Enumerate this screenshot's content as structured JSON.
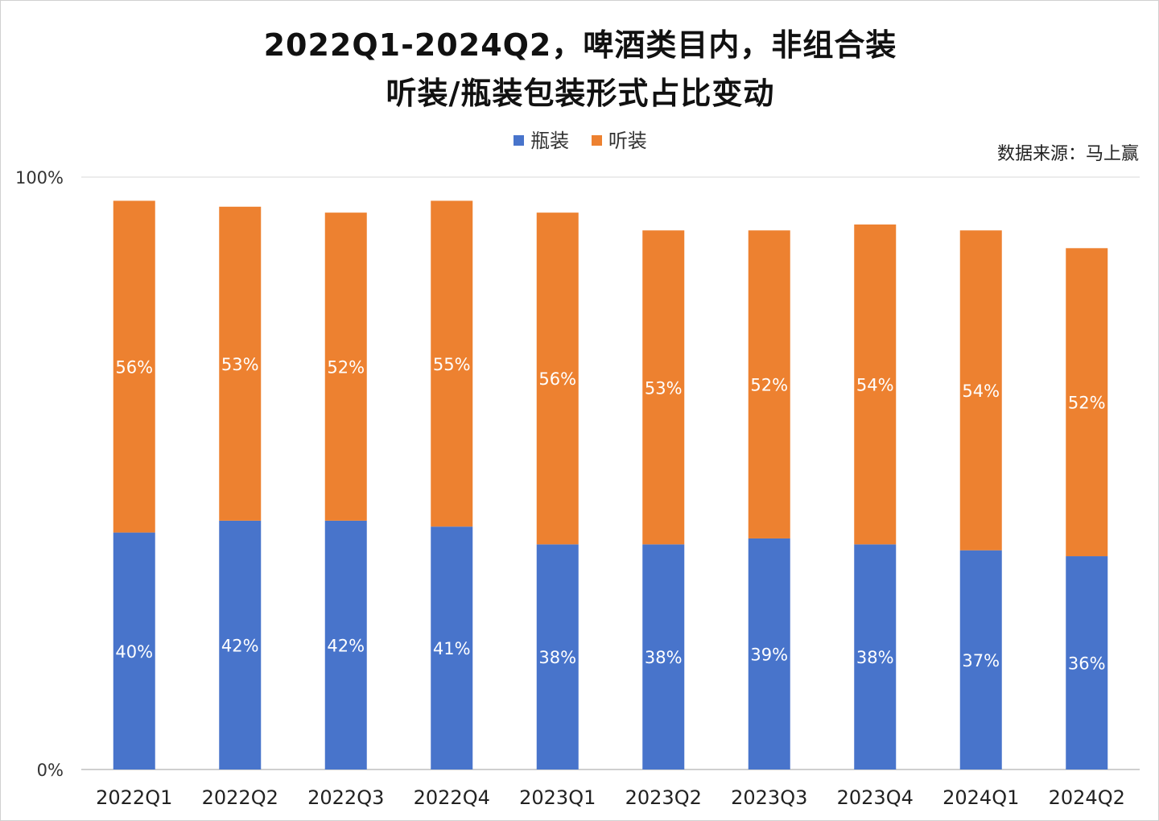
{
  "title_line1": "2022Q1-2024Q2，啤酒类目内，非组合装",
  "title_line2": "听装/瓶装包装形式占比变动",
  "source": "数据来源：马上赢",
  "colors": {
    "bottle": "#4874CB",
    "can": "#ED8130",
    "grid": "#D9D9D9",
    "axis": "#BFBFBF"
  },
  "chart_data": {
    "type": "bar",
    "stacked": true,
    "title": "2022Q1-2024Q2，啤酒类目内，非组合装 听装/瓶装包装形式占比变动",
    "categories": [
      "2022Q1",
      "2022Q2",
      "2022Q3",
      "2022Q4",
      "2023Q1",
      "2023Q2",
      "2023Q3",
      "2023Q4",
      "2024Q1",
      "2024Q2"
    ],
    "series": [
      {
        "name": "瓶装",
        "values": [
          40,
          42,
          42,
          41,
          38,
          38,
          39,
          38,
          37,
          36
        ],
        "labels": [
          "40%",
          "42%",
          "42%",
          "41%",
          "38%",
          "38%",
          "39%",
          "38%",
          "37%",
          "36%"
        ]
      },
      {
        "name": "听装",
        "values": [
          56,
          53,
          52,
          55,
          56,
          53,
          52,
          54,
          54,
          52
        ],
        "labels": [
          "56%",
          "53%",
          "52%",
          "55%",
          "56%",
          "53%",
          "52%",
          "54%",
          "54%",
          "52%"
        ]
      }
    ],
    "ylim": [
      0,
      100
    ],
    "yticks": [
      "0%",
      "100%"
    ],
    "legend": "top-center",
    "grid": false
  }
}
